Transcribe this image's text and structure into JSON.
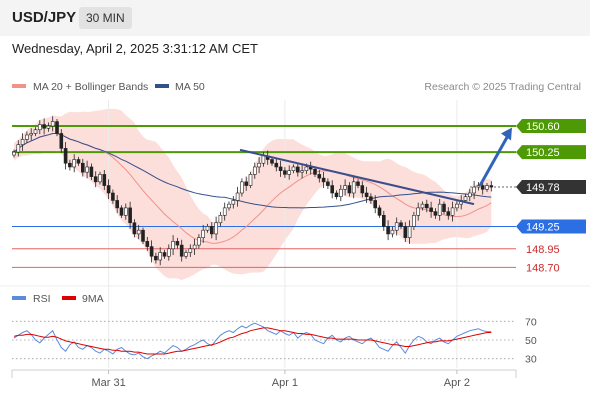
{
  "header": {
    "symbol": "USD/JPY",
    "timeframe": "30 MIN",
    "datetime": "Wednesday, April 2, 2025 3:31:12 AM CET"
  },
  "legend": {
    "ma20_label": "MA 20 + Bollinger Bands",
    "ma50_label": "MA 50",
    "ma20_color": "#f0928a",
    "ma50_color": "#34508c",
    "copyright": "Research © 2025 Trading Central"
  },
  "rsi_legend": {
    "rsi_label": "RSI",
    "ma_label": "9MA",
    "rsi_color": "#5b8bdc",
    "ma_color": "#dd0000"
  },
  "chart_data": [
    {
      "type": "candlestick",
      "title": "USD/JPY 30 MIN",
      "x_ticks": [
        "Mar 31",
        "Apr 1",
        "Apr 2"
      ],
      "price_levels": [
        {
          "label": "150.60",
          "value": 150.6,
          "kind": "resistance",
          "color": "#4e9a06"
        },
        {
          "label": "150.25",
          "value": 150.25,
          "kind": "resistance",
          "color": "#4e9a06"
        },
        {
          "label": "149.78",
          "value": 149.78,
          "kind": "current",
          "color": "#333333"
        },
        {
          "label": "149.25",
          "value": 149.25,
          "kind": "pivot",
          "color": "#2b6fe3"
        },
        {
          "label": "148.95",
          "value": 148.95,
          "kind": "support",
          "color": "#e06666"
        },
        {
          "label": "148.70",
          "value": 148.7,
          "kind": "support",
          "color": "#e06666"
        }
      ],
      "ylim": [
        148.45,
        150.95
      ],
      "trendline": {
        "from": 150.28,
        "to": 149.55
      },
      "forecast_arrow": {
        "from": 149.8,
        "to": 150.58
      },
      "close": [
        150.25,
        150.35,
        150.42,
        150.48,
        150.5,
        150.55,
        150.62,
        150.57,
        150.6,
        150.66,
        150.5,
        150.3,
        150.1,
        150.05,
        150.15,
        150.1,
        149.98,
        150.05,
        149.92,
        149.85,
        149.95,
        149.8,
        149.7,
        149.6,
        149.5,
        149.4,
        149.5,
        149.3,
        149.15,
        149.2,
        149.05,
        148.98,
        148.85,
        148.8,
        148.9,
        148.85,
        148.95,
        149.05,
        149.0,
        148.85,
        148.9,
        148.95,
        149.0,
        149.1,
        149.2,
        149.25,
        149.15,
        149.3,
        149.4,
        149.5,
        149.55,
        149.6,
        149.7,
        149.85,
        149.8,
        149.95,
        150.05,
        150.1,
        150.2,
        150.15,
        150.1,
        150.05,
        150.0,
        149.95,
        150.0,
        150.05,
        149.98,
        150.0,
        150.05,
        150.02,
        149.95,
        149.9,
        149.85,
        149.8,
        149.7,
        149.65,
        149.75,
        149.8,
        149.7,
        149.85,
        149.8,
        149.7,
        149.65,
        149.6,
        149.5,
        149.4,
        149.25,
        149.15,
        149.2,
        149.3,
        149.25,
        149.1,
        149.25,
        149.4,
        149.5,
        149.55,
        149.5,
        149.45,
        149.4,
        149.55,
        149.45,
        149.4,
        149.5,
        149.55,
        149.6,
        149.65,
        149.7,
        149.78,
        149.8,
        149.75,
        149.8,
        149.78
      ],
      "rsi": {
        "levels": [
          70,
          50,
          30
        ],
        "ylim": [
          20,
          80
        ],
        "series": [
          {
            "name": "RSI",
            "values": [
              52,
              55,
              58,
              60,
              56,
              50,
              47,
              52,
              56,
              60,
              50,
              42,
              38,
              45,
              48,
              42,
              40,
              44,
              42,
              38,
              36,
              40,
              38,
              35,
              40,
              42,
              38,
              35,
              34,
              36,
              32,
              30,
              33,
              35,
              38,
              36,
              40,
              44,
              42,
              38,
              40,
              43,
              45,
              48,
              50,
              46,
              44,
              50,
              55,
              58,
              60,
              58,
              62,
              65,
              63,
              66,
              68,
              66,
              64,
              60,
              58,
              56,
              60,
              57,
              55,
              58,
              52,
              56,
              58,
              56,
              50,
              48,
              46,
              52,
              55,
              50,
              48,
              52,
              54,
              50,
              48,
              46,
              50,
              52,
              48,
              42,
              40,
              38,
              44,
              48,
              42,
              36,
              44,
              50,
              54,
              52,
              48,
              46,
              50,
              52,
              48,
              46,
              50,
              54,
              56,
              58,
              60,
              61,
              62,
              60,
              59,
              59
            ]
          },
          {
            "name": "9MA",
            "values": [
              54,
              55,
              55,
              56,
              56,
              55,
              54,
              53,
              53,
              54,
              53,
              51,
              49,
              48,
              47,
              46,
              45,
              44,
              43,
              42,
              41,
              40,
              40,
              39,
              39,
              38,
              38,
              38,
              37,
              37,
              36,
              35,
              35,
              35,
              35,
              35,
              36,
              37,
              38,
              38,
              39,
              40,
              41,
              42,
              43,
              44,
              45,
              46,
              48,
              50,
              52,
              53,
              55,
              57,
              58,
              60,
              61,
              62,
              63,
              63,
              62,
              61,
              60,
              60,
              59,
              58,
              57,
              57,
              56,
              56,
              55,
              54,
              53,
              52,
              52,
              51,
              51,
              51,
              51,
              51,
              50,
              50,
              50,
              50,
              49,
              48,
              47,
              46,
              45,
              45,
              44,
              43,
              43,
              44,
              45,
              46,
              47,
              48,
              48,
              49,
              49,
              49,
              50,
              51,
              52,
              53,
              54,
              55,
              56,
              57,
              58,
              58
            ]
          }
        ]
      }
    }
  ]
}
